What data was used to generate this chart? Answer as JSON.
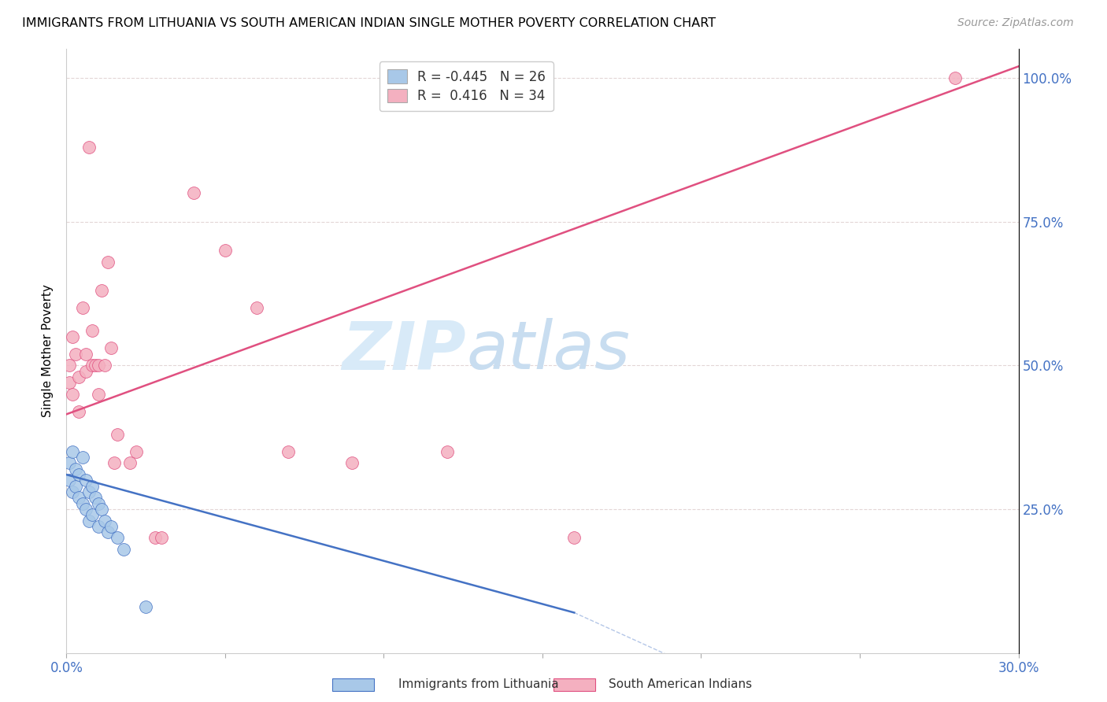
{
  "title": "IMMIGRANTS FROM LITHUANIA VS SOUTH AMERICAN INDIAN SINGLE MOTHER POVERTY CORRELATION CHART",
  "source": "Source: ZipAtlas.com",
  "ylabel": "Single Mother Poverty",
  "x_min": 0.0,
  "x_max": 0.3,
  "y_min": 0.0,
  "y_max": 1.05,
  "x_ticks": [
    0.0,
    0.05,
    0.1,
    0.15,
    0.2,
    0.25,
    0.3
  ],
  "y_ticks": [
    0.0,
    0.25,
    0.5,
    0.75,
    1.0
  ],
  "legend_label1": "Immigrants from Lithuania",
  "legend_label2": "South American Indians",
  "R1": -0.445,
  "N1": 26,
  "R2": 0.416,
  "N2": 34,
  "color1": "#a8c8e8",
  "color2": "#f4b0c0",
  "line_color1": "#4472c4",
  "line_color2": "#e05080",
  "watermark_zip": "ZIP",
  "watermark_atlas": "atlas",
  "watermark_color": "#d8eaf8",
  "blue_scatter_x": [
    0.001,
    0.001,
    0.002,
    0.002,
    0.003,
    0.003,
    0.004,
    0.004,
    0.005,
    0.005,
    0.006,
    0.006,
    0.007,
    0.007,
    0.008,
    0.008,
    0.009,
    0.01,
    0.01,
    0.011,
    0.012,
    0.013,
    0.014,
    0.016,
    0.018,
    0.025
  ],
  "blue_scatter_y": [
    0.33,
    0.3,
    0.35,
    0.28,
    0.32,
    0.29,
    0.31,
    0.27,
    0.34,
    0.26,
    0.3,
    0.25,
    0.28,
    0.23,
    0.29,
    0.24,
    0.27,
    0.26,
    0.22,
    0.25,
    0.23,
    0.21,
    0.22,
    0.2,
    0.18,
    0.08
  ],
  "pink_scatter_x": [
    0.001,
    0.001,
    0.002,
    0.002,
    0.003,
    0.004,
    0.004,
    0.005,
    0.006,
    0.006,
    0.007,
    0.008,
    0.008,
    0.009,
    0.01,
    0.01,
    0.011,
    0.012,
    0.013,
    0.014,
    0.015,
    0.016,
    0.02,
    0.022,
    0.028,
    0.03,
    0.04,
    0.05,
    0.06,
    0.07,
    0.09,
    0.12,
    0.16,
    0.28
  ],
  "pink_scatter_y": [
    0.5,
    0.47,
    0.55,
    0.45,
    0.52,
    0.48,
    0.42,
    0.6,
    0.52,
    0.49,
    0.88,
    0.56,
    0.5,
    0.5,
    0.5,
    0.45,
    0.63,
    0.5,
    0.68,
    0.53,
    0.33,
    0.38,
    0.33,
    0.35,
    0.2,
    0.2,
    0.8,
    0.7,
    0.6,
    0.35,
    0.33,
    0.35,
    0.2,
    1.0
  ],
  "pink_line_x0": 0.0,
  "pink_line_y0": 0.415,
  "pink_line_x1": 0.3,
  "pink_line_y1": 1.02,
  "blue_line_x0": 0.0,
  "blue_line_y0": 0.31,
  "blue_line_x1": 0.16,
  "blue_line_y1": 0.07
}
